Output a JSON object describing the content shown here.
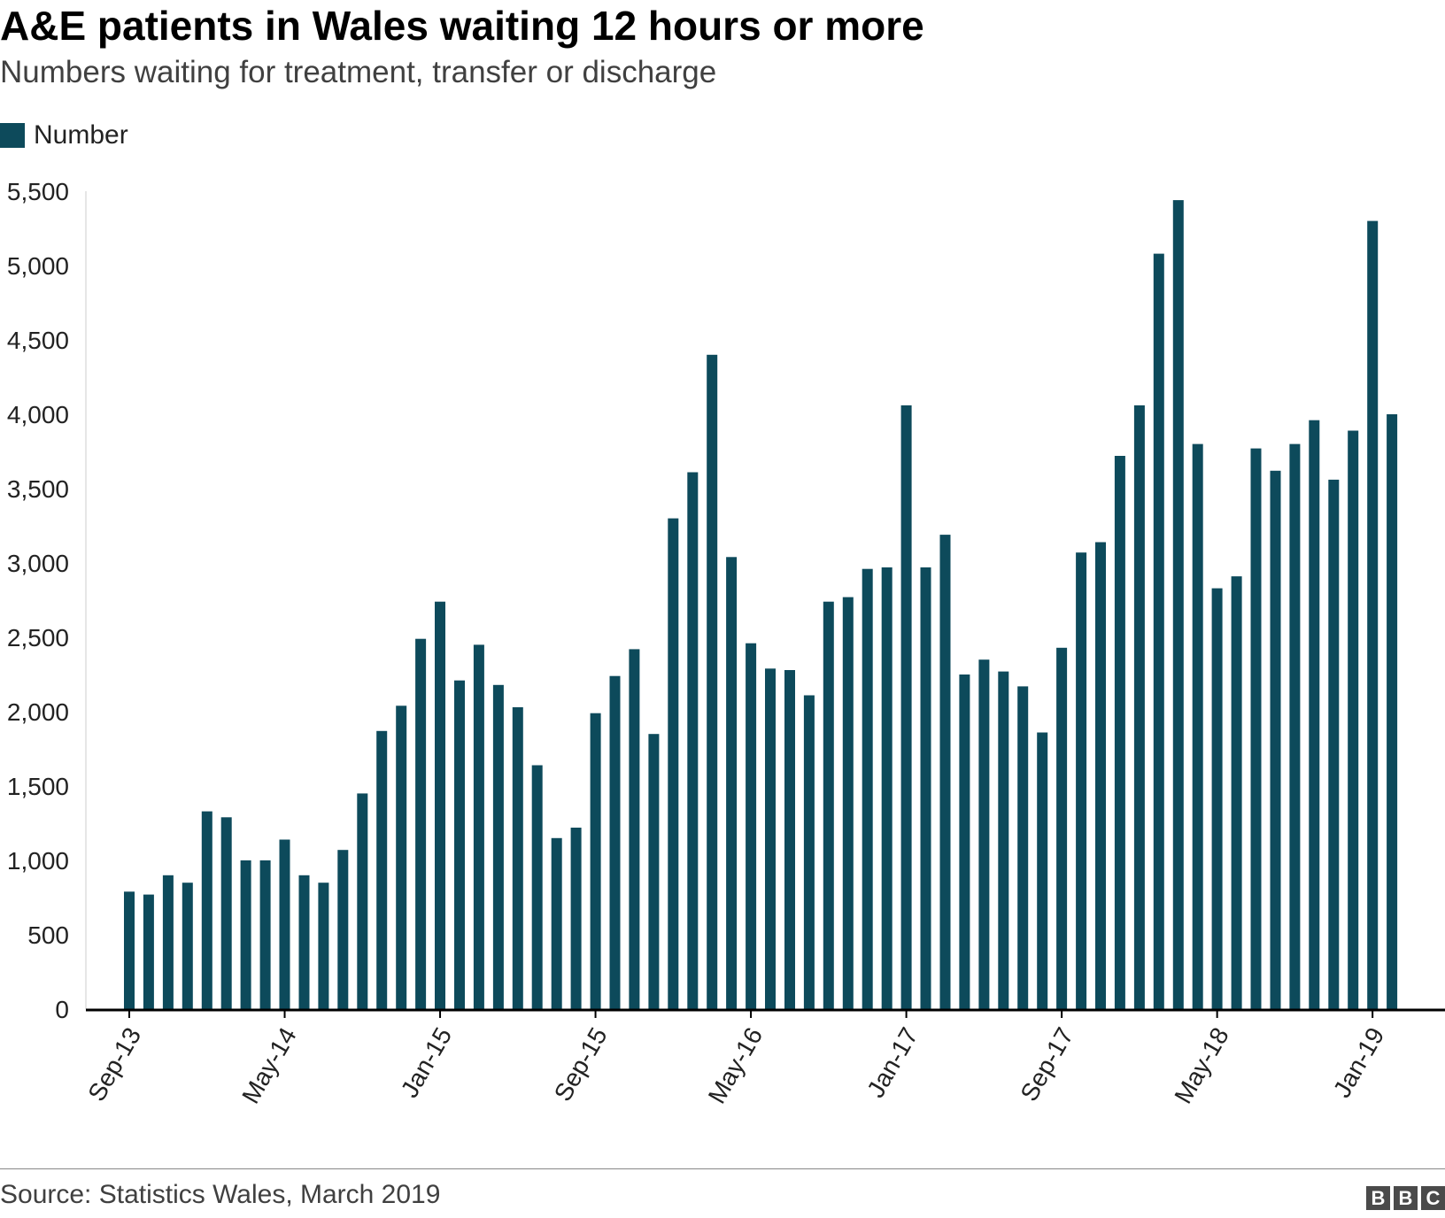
{
  "header": {
    "title": "A&E patients in Wales waiting 12 hours or more",
    "subtitle": "Numbers waiting for treatment, transfer or discharge"
  },
  "legend": {
    "label": "Number"
  },
  "footer": {
    "source": "Source: Statistics Wales, March 2019",
    "logo_letters": [
      "B",
      "B",
      "C"
    ]
  },
  "colors": {
    "bar": "#0d4a5b",
    "axis": "#000000",
    "text": "#222222"
  },
  "chart_data": {
    "type": "bar",
    "title": "A&E patients in Wales waiting 12 hours or more",
    "subtitle": "Numbers waiting for treatment, transfer or discharge",
    "xlabel": "",
    "ylabel": "",
    "ylim": [
      0,
      5500
    ],
    "yticks": [
      0,
      500,
      1000,
      1500,
      2000,
      2500,
      3000,
      3500,
      4000,
      4500,
      5000,
      5500
    ],
    "ytick_labels": [
      "0",
      "500",
      "1,000",
      "1,500",
      "2,000",
      "2,500",
      "3,000",
      "3,500",
      "4,000",
      "4,500",
      "5,000",
      "5,500"
    ],
    "grid": false,
    "legend_position": "top-left",
    "categories": [
      "Sep-13",
      "Oct-13",
      "Nov-13",
      "Dec-13",
      "Jan-14",
      "Feb-14",
      "Mar-14",
      "Apr-14",
      "May-14",
      "Jun-14",
      "Jul-14",
      "Aug-14",
      "Sep-14",
      "Oct-14",
      "Nov-14",
      "Dec-14",
      "Jan-15",
      "Feb-15",
      "Mar-15",
      "Apr-15",
      "May-15",
      "Jun-15",
      "Jul-15",
      "Aug-15",
      "Sep-15",
      "Oct-15",
      "Nov-15",
      "Dec-15",
      "Jan-16",
      "Feb-16",
      "Mar-16",
      "Apr-16",
      "May-16",
      "Jun-16",
      "Jul-16",
      "Aug-16",
      "Sep-16",
      "Oct-16",
      "Nov-16",
      "Dec-16",
      "Jan-17",
      "Feb-17",
      "Mar-17",
      "Apr-17",
      "May-17",
      "Jun-17",
      "Jul-17",
      "Aug-17",
      "Sep-17",
      "Oct-17",
      "Nov-17",
      "Dec-17",
      "Jan-18",
      "Feb-18",
      "Mar-18",
      "Apr-18",
      "May-18",
      "Jun-18",
      "Jul-18",
      "Aug-18",
      "Sep-18",
      "Oct-18",
      "Nov-18",
      "Dec-18",
      "Jan-19",
      "Feb-19"
    ],
    "xtick_labels": [
      "Sep-13",
      "May-14",
      "Jan-15",
      "Sep-15",
      "May-16",
      "Jan-17",
      "Sep-17",
      "May-18",
      "Jan-19"
    ],
    "series": [
      {
        "name": "Number",
        "values": [
          790,
          770,
          900,
          850,
          1330,
          1290,
          1000,
          1000,
          1140,
          900,
          850,
          1070,
          1450,
          1870,
          2040,
          2490,
          2740,
          2210,
          2450,
          2180,
          2030,
          1640,
          1150,
          1220,
          1990,
          2240,
          2420,
          1850,
          3300,
          3610,
          4400,
          3040,
          2460,
          2290,
          2280,
          2110,
          2740,
          2770,
          2960,
          2970,
          4060,
          2970,
          3190,
          2250,
          2350,
          2270,
          2170,
          1860,
          2430,
          3070,
          3140,
          3720,
          4060,
          5080,
          5440,
          3800,
          2830,
          2910,
          3770,
          3620,
          3800,
          3960,
          3560,
          3890,
          5300,
          4000
        ]
      }
    ]
  }
}
